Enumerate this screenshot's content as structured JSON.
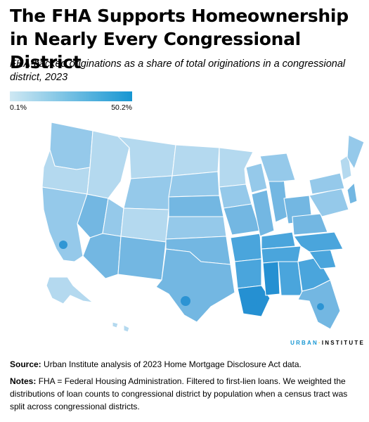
{
  "title": "The FHA Supports Homeownership in Nearly Every Congressional District",
  "subtitle": "FHA-backed originations as a share of total originations in a congressional district, 2023",
  "legend": {
    "min_label": "0.1%",
    "max_label": "50.2%",
    "min_color": "#cfe8f3",
    "max_color": "#1696d2"
  },
  "brand": {
    "part1": "URBAN",
    "sep": "·",
    "part2": "INSTITUTE"
  },
  "source": {
    "label": "Source:",
    "text": "Urban Institute analysis of 2023 Home Mortgage Disclosure Act data."
  },
  "notes": {
    "label": "Notes:",
    "text": "FHA = Federal Housing Administration. Filtered to first-lien loans. We weighted the distributions of loan counts to congressional district by population when a census tract was split across congressional districts."
  },
  "map": {
    "colors": {
      "c1": "#d7ecf6",
      "c2": "#b4d9ef",
      "c3": "#95c9ea",
      "c4": "#73b7e2",
      "c5": "#4aa5dc",
      "c6": "#2590d2",
      "border": "#ffffff"
    }
  }
}
